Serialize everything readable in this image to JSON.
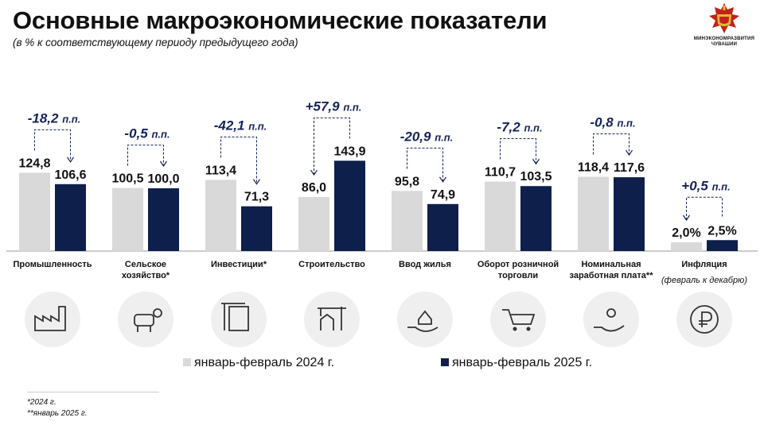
{
  "header": {
    "title": "Основные макроэкономические показатели",
    "subtitle": "(в % к соответствующему периоду предыдущего года)"
  },
  "logo": {
    "text_line1": "МИНЭКОНОМРАЗВИТИЯ",
    "text_line2": "ЧУВАШИИ"
  },
  "colors": {
    "series_2024": "#d9d9d9",
    "series_2025": "#0f1f4b",
    "delta_text": "#14225a"
  },
  "chart_data": {
    "type": "bar",
    "categories": [
      "Промышленность",
      "Сельское хозяйство*",
      "Инвестиции*",
      "Строительство",
      "Ввод жилья",
      "Оборот розничной торговли",
      "Номинальная заработная плата**",
      "Инфляция"
    ],
    "category_lines": [
      [
        "Промышленность"
      ],
      [
        "Сельское",
        "хозяйство*"
      ],
      [
        "Инвестиции*"
      ],
      [
        "Строительство"
      ],
      [
        "Ввод жилья"
      ],
      [
        "Оборот розничной",
        "торговли"
      ],
      [
        "Номинальная",
        "заработная плата**"
      ],
      [
        "Инфляция"
      ]
    ],
    "category_notes": [
      "",
      "",
      "",
      "",
      "",
      "",
      "",
      "(февраль к декабрю)"
    ],
    "series": [
      {
        "name": "январь-февраль 2024 г.",
        "values": [
          124.8,
          100.5,
          113.4,
          86.0,
          95.8,
          110.7,
          118.4,
          2.0
        ]
      },
      {
        "name": "январь-февраль 2025 г.",
        "values": [
          106.6,
          100.0,
          71.3,
          143.9,
          74.9,
          103.5,
          117.6,
          2.5
        ]
      }
    ],
    "value_labels": [
      [
        "124,8",
        "100,5",
        "113,4",
        "86,0",
        "95,8",
        "110,7",
        "118,4",
        "2,0%"
      ],
      [
        "106,6",
        "100,0",
        "71,3",
        "143,9",
        "74,9",
        "103,5",
        "117,6",
        "2,5%"
      ]
    ],
    "deltas": [
      {
        "value": "-18,2",
        "unit": "п.п."
      },
      {
        "value": "-0,5",
        "unit": "п.п."
      },
      {
        "value": "-42,1",
        "unit": "п.п."
      },
      {
        "value": "+57,9",
        "unit": "п.п."
      },
      {
        "value": "-20,9",
        "unit": "п.п."
      },
      {
        "value": "-7,2",
        "unit": "п.п."
      },
      {
        "value": "-0,8",
        "unit": "п.п."
      },
      {
        "value": "+0,5",
        "unit": "п.п."
      }
    ],
    "icons": [
      "factory-icon",
      "cow-icon",
      "construction-icon",
      "crane-icon",
      "house-hand-icon",
      "cart-icon",
      "coins-hand-icon",
      "ruble-icon"
    ],
    "legend_position": "bottom",
    "grid": false
  },
  "footnotes": [
    "*2024 г.",
    "**январь 2025 г."
  ]
}
